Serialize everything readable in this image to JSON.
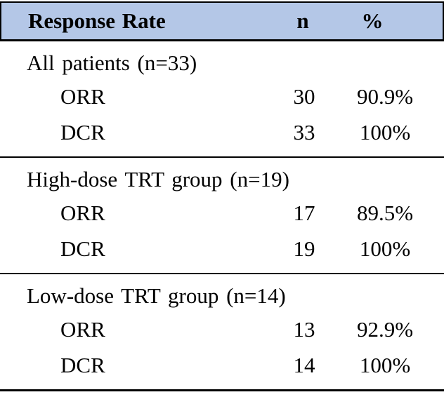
{
  "colors": {
    "header_bg": "#b4c7e7",
    "border": "#000000",
    "text": "#000000"
  },
  "header": {
    "col_label": "Response Rate",
    "col_n": "n",
    "col_pct": "%"
  },
  "sections": [
    {
      "group": "All patients (n=33)",
      "rows": [
        {
          "label": "ORR",
          "n": "30",
          "pct": "90.9%"
        },
        {
          "label": "DCR",
          "n": "33",
          "pct": "100%"
        }
      ]
    },
    {
      "group": "High-dose TRT group (n=19)",
      "rows": [
        {
          "label": "ORR",
          "n": "17",
          "pct": "89.5%"
        },
        {
          "label": "DCR",
          "n": "19",
          "pct": "100%"
        }
      ]
    },
    {
      "group": "Low-dose TRT group (n=14)",
      "rows": [
        {
          "label": "ORR",
          "n": "13",
          "pct": "92.9%"
        },
        {
          "label": "DCR",
          "n": "14",
          "pct": "100%"
        }
      ]
    }
  ],
  "chart_data": {
    "type": "table",
    "title": "Response Rate",
    "columns": [
      "Response Rate",
      "n",
      "%"
    ],
    "rows": [
      [
        "All patients (n=33)",
        "",
        ""
      ],
      [
        "ORR",
        "30",
        "90.9%"
      ],
      [
        "DCR",
        "33",
        "100%"
      ],
      [
        "High-dose TRT group (n=19)",
        "",
        ""
      ],
      [
        "ORR",
        "17",
        "89.5%"
      ],
      [
        "DCR",
        "19",
        "100%"
      ],
      [
        "Low-dose TRT group (n=14)",
        "",
        ""
      ],
      [
        "ORR",
        "13",
        "92.9%"
      ],
      [
        "DCR",
        "14",
        "100%"
      ]
    ]
  }
}
